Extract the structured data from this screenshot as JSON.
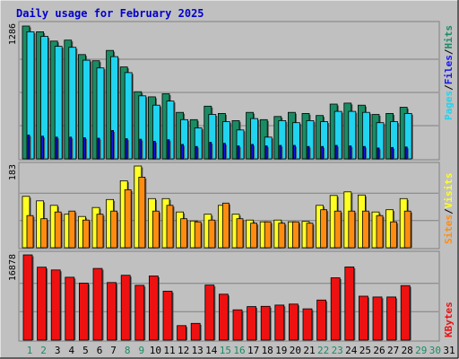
{
  "title": "Daily usage for February 2025",
  "colors": {
    "background": "#c0c0c0",
    "plot_bg": "#c0c0c0",
    "grid": "#808080",
    "title": "#0000cc",
    "hits": "#1a8c63",
    "files": "#1515f0",
    "pages": "#21d3ee",
    "visits": "#ffff22",
    "sites": "#ff8c11",
    "kbytes": "#ee1111",
    "day_weekday": "#000000",
    "day_weekend": "#1a8c63"
  },
  "panels": {
    "top": {
      "max_label": "1286",
      "legend": [
        {
          "text": "Pages",
          "color_key": "pages"
        },
        {
          "text": "/",
          "color_key": "slash"
        },
        {
          "text": "Files",
          "color_key": "files"
        },
        {
          "text": "/",
          "color_key": "slash"
        },
        {
          "text": "Hits",
          "color_key": "hits"
        }
      ]
    },
    "middle": {
      "max_label": "183",
      "legend": [
        {
          "text": "Sites",
          "color_key": "sites"
        },
        {
          "text": "/",
          "color_key": "slash"
        },
        {
          "text": "Visits",
          "color_key": "visits"
        }
      ]
    },
    "bottom": {
      "max_label": "16878",
      "legend": [
        {
          "text": "KBytes",
          "color_key": "kbytes"
        }
      ]
    }
  },
  "chart_data": {
    "type": "bar",
    "title": "Daily usage for February 2025",
    "categories": [
      "1",
      "2",
      "3",
      "4",
      "5",
      "6",
      "7",
      "8",
      "9",
      "10",
      "11",
      "12",
      "13",
      "14",
      "15",
      "16",
      "17",
      "18",
      "19",
      "20",
      "21",
      "22",
      "23",
      "24",
      "25",
      "26",
      "27",
      "28",
      "29",
      "30",
      "31"
    ],
    "weekend_days": [
      "1",
      "2",
      "8",
      "9",
      "15",
      "16",
      "22",
      "23",
      "29",
      "30"
    ],
    "series": [
      {
        "name": "Hits",
        "panel": "top",
        "ymax": 1286,
        "values": [
          1286,
          1230,
          1140,
          1150,
          1010,
          950,
          1050,
          890,
          650,
          600,
          630,
          450,
          380,
          510,
          440,
          370,
          450,
          380,
          410,
          450,
          440,
          420,
          530,
          540,
          520,
          430,
          440,
          500,
          null,
          null,
          null
        ]
      },
      {
        "name": "Files",
        "panel": "top",
        "ymax": 1286,
        "values": [
          230,
          220,
          210,
          210,
          205,
          200,
          275,
          195,
          190,
          170,
          185,
          140,
          120,
          160,
          150,
          125,
          140,
          125,
          130,
          130,
          120,
          120,
          130,
          125,
          120,
          105,
          110,
          115,
          null,
          null,
          null
        ]
      },
      {
        "name": "Pages",
        "panel": "top",
        "ymax": 1286,
        "values": [
          1230,
          1185,
          1090,
          1080,
          955,
          880,
          990,
          835,
          610,
          520,
          560,
          380,
          300,
          430,
          360,
          280,
          390,
          210,
          370,
          350,
          370,
          360,
          460,
          460,
          450,
          350,
          360,
          440,
          null,
          null,
          null
        ]
      },
      {
        "name": "Visits",
        "panel": "middle",
        "ymax": 183,
        "values": [
          115,
          105,
          95,
          75,
          70,
          90,
          108,
          150,
          183,
          110,
          110,
          80,
          60,
          75,
          95,
          75,
          62,
          58,
          62,
          58,
          59,
          95,
          117,
          125,
          118,
          80,
          85,
          110,
          null,
          null,
          null
        ]
      },
      {
        "name": "Sites",
        "panel": "middle",
        "ymax": 183,
        "values": [
          72,
          65,
          80,
          82,
          62,
          75,
          82,
          130,
          158,
          82,
          95,
          65,
          58,
          62,
          100,
          65,
          55,
          58,
          55,
          58,
          55,
          85,
          82,
          82,
          82,
          72,
          58,
          82,
          null,
          null,
          null
        ]
      },
      {
        "name": "KBytes",
        "panel": "bottom",
        "ymax": 16878,
        "values": [
          16878,
          14450,
          13900,
          12450,
          11300,
          14200,
          11400,
          12850,
          10850,
          12700,
          9700,
          2870,
          3320,
          10900,
          9100,
          6000,
          6650,
          6700,
          6950,
          7150,
          6200,
          7950,
          12350,
          14500,
          8700,
          8550,
          8550,
          10800,
          null,
          null,
          null
        ]
      }
    ]
  }
}
